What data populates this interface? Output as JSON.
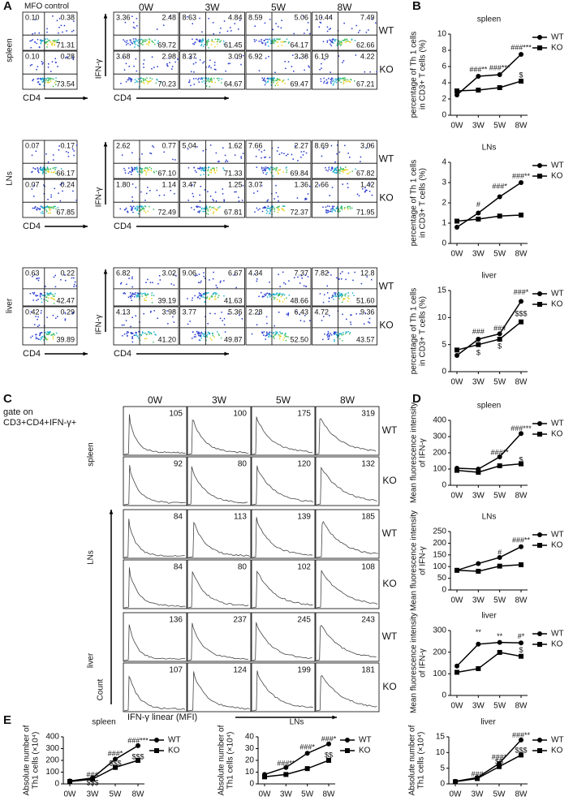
{
  "panel_labels": [
    "A",
    "B",
    "C",
    "D",
    "E"
  ],
  "flow": {
    "control_title": "MFO control",
    "weeks": [
      "0W",
      "3W",
      "5W",
      "8W"
    ],
    "x_axis": "CD4",
    "y_axis": "IFN-γ",
    "groups": [
      "WT",
      "KO"
    ],
    "tissues": [
      {
        "name": "spleen",
        "control": [
          [
            "0.10",
            "0.38",
            "71.31"
          ],
          [
            "0.10",
            "0.28",
            "73.54"
          ]
        ],
        "samples": [
          [
            [
              "3.36",
              "2.48",
              "69.72"
            ],
            [
              "8.63",
              "4.84",
              "61.45"
            ],
            [
              "8.59",
              "5.06",
              "64.17"
            ],
            [
              "10.44",
              "7.49",
              "62.66"
            ]
          ],
          [
            [
              "3.68",
              "2.98",
              "70.23"
            ],
            [
              "8.37",
              "3.09",
              "64.67"
            ],
            [
              "6.92",
              "3.38",
              "69.47"
            ],
            [
              "6.19",
              "4.22",
              "67.21"
            ]
          ]
        ]
      },
      {
        "name": "LNs",
        "control": [
          [
            "0.07",
            "0.17",
            "66.17"
          ],
          [
            "0.07",
            "0.24",
            "67.85"
          ]
        ],
        "samples": [
          [
            [
              "2.62",
              "0.77",
              "67.10"
            ],
            [
              "5.04",
              "1.62",
              "71.33"
            ],
            [
              "7.66",
              "2.27",
              "69.84"
            ],
            [
              "8.69",
              "3.06",
              "67.82"
            ]
          ],
          [
            [
              "1.80",
              "1.14",
              "72.49"
            ],
            [
              "3.47",
              "1.25",
              "67.81"
            ],
            [
              "3.07",
              "1.36",
              "72.37"
            ],
            [
              "2.66",
              "1.42",
              "71.95"
            ]
          ]
        ]
      },
      {
        "name": "liver",
        "control": [
          [
            "0.63",
            "0.22",
            "42.47"
          ],
          [
            "0.42",
            "0.29",
            "39.89"
          ]
        ],
        "samples": [
          [
            [
              "6.82",
              "3.02",
              "39.19"
            ],
            [
              "9.06",
              "6.67",
              "41.63"
            ],
            [
              "4.34",
              "7.37",
              "48.66"
            ],
            [
              "7.82",
              "12.8",
              "51.60"
            ]
          ],
          [
            [
              "4.13",
              "3.98",
              "41.20"
            ],
            [
              "3.77",
              "5.36",
              "49.87"
            ],
            [
              "2.28",
              "6.43",
              "52.50"
            ],
            [
              "4.72",
              "9.36",
              "43.57"
            ]
          ]
        ]
      }
    ]
  },
  "histograms": {
    "gate": [
      "gate on",
      "CD3+CD4+IFN-γ+"
    ],
    "weeks": [
      "0W",
      "3W",
      "5W",
      "8W"
    ],
    "groups": [
      "WT",
      "KO"
    ],
    "x_axis": "IFN-γ  linear (MFI)",
    "y_axis": "Count",
    "tissues": [
      {
        "name": "spleen",
        "mfi": [
          [
            "105",
            "100",
            "175",
            "319"
          ],
          [
            "92",
            "80",
            "120",
            "132"
          ]
        ]
      },
      {
        "name": "LNs",
        "mfi": [
          [
            "84",
            "113",
            "139",
            "185"
          ],
          [
            "84",
            "80",
            "102",
            "108"
          ]
        ]
      },
      {
        "name": "liver",
        "mfi": [
          [
            "136",
            "237",
            "245",
            "243"
          ],
          [
            "107",
            "124",
            "199",
            "181"
          ]
        ]
      }
    ]
  },
  "chart_data": [
    {
      "type": "line",
      "title": "spleen",
      "ylabel": [
        "percentage of Th 1 cells",
        "in CD3+ T cells (%)"
      ],
      "categories": [
        "0W",
        "3W",
        "5W",
        "8W"
      ],
      "series": [
        {
          "name": "WT",
          "color": "#000000",
          "marker": "circle",
          "values": [
            2.5,
            4.8,
            5.0,
            7.5
          ]
        },
        {
          "name": "KO",
          "color": "#000000",
          "marker": "square",
          "values": [
            3.0,
            3.1,
            3.4,
            4.2
          ]
        }
      ],
      "ylim": [
        0,
        10
      ],
      "yticks": [
        0,
        2,
        4,
        6,
        8,
        10
      ],
      "annotations": [
        {
          "x": "3W",
          "y": 5.6,
          "text": "###**"
        },
        {
          "x": "5W",
          "y": 5.8,
          "text": "###***"
        },
        {
          "x": "8W",
          "y": 8.3,
          "text": "###***"
        },
        {
          "x": "8W",
          "y": 4.9,
          "text": "$"
        }
      ]
    },
    {
      "type": "line",
      "title": "LNs",
      "ylabel": [
        "percentage of Th 1 cells",
        "in CD3+ T cells (%)"
      ],
      "categories": [
        "0W",
        "3W",
        "5W",
        "8W"
      ],
      "series": [
        {
          "name": "WT",
          "color": "#000000",
          "marker": "circle",
          "values": [
            0.8,
            1.5,
            2.3,
            3.0
          ]
        },
        {
          "name": "KO",
          "color": "#000000",
          "marker": "square",
          "values": [
            1.1,
            1.2,
            1.35,
            1.4
          ]
        }
      ],
      "ylim": [
        0,
        4
      ],
      "yticks": [
        0,
        1,
        2,
        3,
        4
      ],
      "annotations": [
        {
          "x": "3W",
          "y": 1.9,
          "text": "#"
        },
        {
          "x": "5W",
          "y": 2.8,
          "text": "###*"
        },
        {
          "x": "8W",
          "y": 3.3,
          "text": "###**"
        }
      ]
    },
    {
      "type": "line",
      "title": "liver",
      "ylabel": [
        "percentage of Th 1 cells",
        "in CD3+ T cells (%)"
      ],
      "categories": [
        "0W",
        "3W",
        "5W",
        "8W"
      ],
      "series": [
        {
          "name": "WT",
          "color": "#000000",
          "marker": "circle",
          "values": [
            3,
            6,
            7,
            13
          ]
        },
        {
          "name": "KO",
          "color": "#000000",
          "marker": "square",
          "values": [
            4,
            5,
            6,
            9.2
          ]
        }
      ],
      "ylim": [
        0,
        15
      ],
      "yticks": [
        0,
        5,
        10,
        15
      ],
      "annotations": [
        {
          "x": "3W",
          "y": 7.3,
          "text": "###"
        },
        {
          "x": "3W",
          "y": 3.4,
          "text": "$"
        },
        {
          "x": "5W",
          "y": 7.9,
          "text": "###"
        },
        {
          "x": "5W",
          "y": 4.6,
          "text": "$"
        },
        {
          "x": "8W",
          "y": 14.6,
          "text": "###*"
        },
        {
          "x": "8W",
          "y": 10.6,
          "text": "$$$"
        }
      ]
    },
    {
      "type": "line",
      "title": "spleen",
      "ylabel": [
        "Mean fluorescence intensity",
        "of IFN-γ"
      ],
      "categories": [
        "0W",
        "3W",
        "5W",
        "8W"
      ],
      "series": [
        {
          "name": "WT",
          "color": "#000000",
          "marker": "circle",
          "values": [
            105,
            100,
            175,
            319
          ]
        },
        {
          "name": "KO",
          "color": "#000000",
          "marker": "square",
          "values": [
            92,
            80,
            120,
            132
          ]
        }
      ],
      "ylim": [
        0,
        400
      ],
      "yticks": [
        0,
        100,
        200,
        300,
        400
      ],
      "annotations": [
        {
          "x": "5W",
          "y": 200,
          "text": "###**"
        },
        {
          "x": "8W",
          "y": 348,
          "text": "###***"
        },
        {
          "x": "8W",
          "y": 155,
          "text": "$"
        }
      ]
    },
    {
      "type": "line",
      "title": "LNs",
      "ylabel": [
        "Mean fluorescence intensity",
        "of IFN-γ"
      ],
      "categories": [
        "0W",
        "3W",
        "5W",
        "8W"
      ],
      "series": [
        {
          "name": "WT",
          "color": "#000000",
          "marker": "circle",
          "values": [
            84,
            113,
            139,
            185
          ]
        },
        {
          "name": "KO",
          "color": "#000000",
          "marker": "square",
          "values": [
            84,
            80,
            102,
            108
          ]
        }
      ],
      "ylim": [
        0,
        250
      ],
      "yticks": [
        0,
        50,
        100,
        150,
        200,
        250
      ],
      "annotations": [
        {
          "x": "5W",
          "y": 160,
          "text": "#"
        },
        {
          "x": "8W",
          "y": 212,
          "text": "###**"
        }
      ]
    },
    {
      "type": "line",
      "title": "liver",
      "ylabel": [
        "Mean fluorescence intensity",
        "of IFN-γ"
      ],
      "categories": [
        "0W",
        "3W",
        "5W",
        "8W"
      ],
      "series": [
        {
          "name": "WT",
          "color": "#000000",
          "marker": "circle",
          "values": [
            136,
            237,
            245,
            243
          ]
        },
        {
          "name": "KO",
          "color": "#000000",
          "marker": "square",
          "values": [
            107,
            124,
            199,
            181
          ]
        }
      ],
      "ylim": [
        0,
        300
      ],
      "yticks": [
        0,
        100,
        200,
        300
      ],
      "annotations": [
        {
          "x": "3W",
          "y": 290,
          "text": "**"
        },
        {
          "x": "5W",
          "y": 272,
          "text": "**"
        },
        {
          "x": "8W",
          "y": 272,
          "text": "#*"
        },
        {
          "x": "8W",
          "y": 207,
          "text": "$"
        }
      ]
    },
    {
      "type": "line",
      "title": "spleen",
      "ylabel": [
        "Absolute number of",
        "Th1 cells (×10⁴)"
      ],
      "categories": [
        "0W",
        "3W",
        "5W",
        "8W"
      ],
      "series": [
        {
          "name": "WT",
          "color": "#000000",
          "marker": "circle",
          "values": [
            25,
            50,
            210,
            325
          ]
        },
        {
          "name": "KO",
          "color": "#000000",
          "marker": "square",
          "values": [
            20,
            40,
            140,
            200
          ]
        }
      ],
      "ylim": [
        0,
        400
      ],
      "yticks": [
        0,
        100,
        200,
        300,
        400
      ],
      "annotations": [
        {
          "x": "3W",
          "y": 75,
          "text": "###"
        },
        {
          "x": "3W",
          "y": 5,
          "text": "$$$"
        },
        {
          "x": "5W",
          "y": 255,
          "text": "###*"
        },
        {
          "x": "5W",
          "y": 170,
          "text": "$$$"
        },
        {
          "x": "8W",
          "y": 365,
          "text": "###***"
        },
        {
          "x": "8W",
          "y": 228,
          "text": "$$$"
        }
      ]
    },
    {
      "type": "line",
      "title": "LNs",
      "ylabel": [
        "Absolute number of",
        "Th1 cells (×10⁴)"
      ],
      "categories": [
        "0W",
        "3W",
        "5W",
        "8W"
      ],
      "series": [
        {
          "name": "WT",
          "color": "#000000",
          "marker": "circle",
          "values": [
            8,
            14,
            26,
            34
          ]
        },
        {
          "name": "KO",
          "color": "#000000",
          "marker": "square",
          "values": [
            6,
            8,
            13,
            20
          ]
        }
      ],
      "ylim": [
        0,
        40
      ],
      "yticks": [
        0,
        10,
        20,
        30,
        40
      ],
      "annotations": [
        {
          "x": "3W",
          "y": 17,
          "text": "###**"
        },
        {
          "x": "5W",
          "y": 31,
          "text": "###*"
        },
        {
          "x": "8W",
          "y": 38,
          "text": "###*"
        },
        {
          "x": "8W",
          "y": 24,
          "text": "$$"
        }
      ]
    },
    {
      "type": "line",
      "title": "liver",
      "ylabel": [
        "Absolute number of",
        "Th1 cells (×10⁴)"
      ],
      "categories": [
        "0W",
        "3W",
        "5W",
        "8W"
      ],
      "series": [
        {
          "name": "WT",
          "color": "#000000",
          "marker": "circle",
          "values": [
            0.8,
            2,
            6.5,
            14
          ]
        },
        {
          "name": "KO",
          "color": "#000000",
          "marker": "square",
          "values": [
            0.7,
            1.7,
            5.5,
            9.2
          ]
        }
      ],
      "ylim": [
        0,
        15
      ],
      "yticks": [
        0,
        5,
        10,
        15
      ],
      "annotations": [
        {
          "x": "3W",
          "y": 3.0,
          "text": "###"
        },
        {
          "x": "5W",
          "y": 8.4,
          "text": "###*"
        },
        {
          "x": "5W",
          "y": 7.0,
          "text": "$$"
        },
        {
          "x": "8W",
          "y": 15.3,
          "text": "###**"
        },
        {
          "x": "8W",
          "y": 10.6,
          "text": "$$$"
        }
      ]
    }
  ]
}
